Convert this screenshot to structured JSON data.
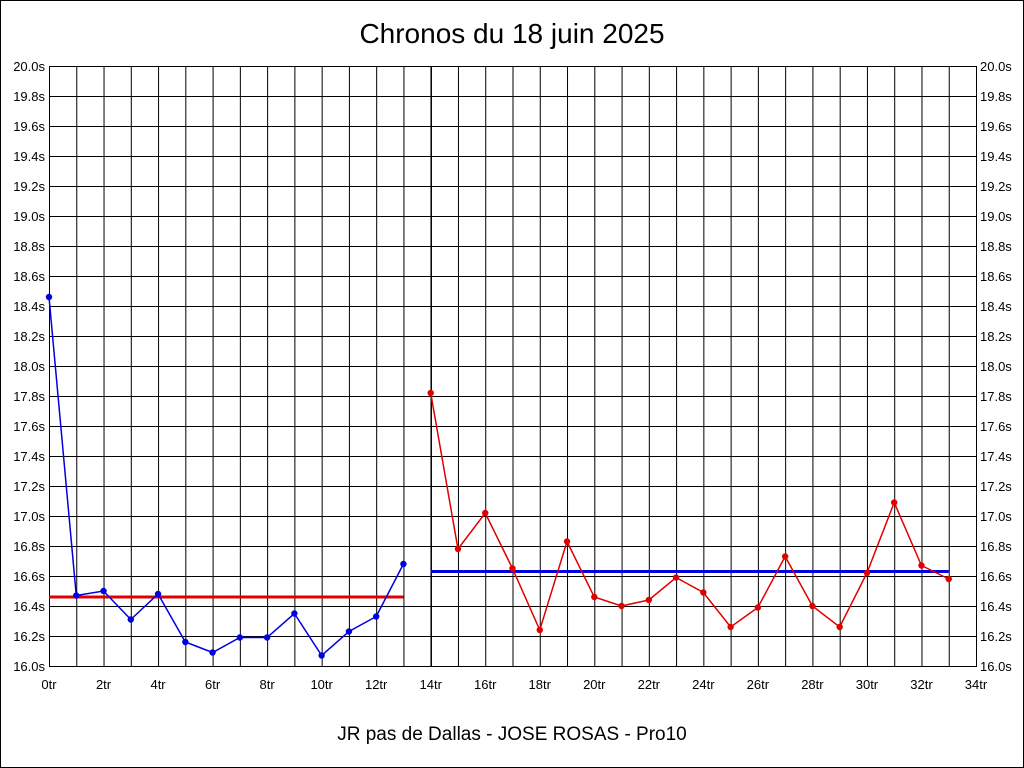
{
  "title": "Chronos du 18 juin 2025",
  "subtitle": "JR pas de Dallas - JOSE ROSAS - Pro10",
  "chart_data": {
    "type": "line",
    "title": "Chronos du 18 juin 2025",
    "xlabel": "JR pas de Dallas - JOSE ROSAS - Pro10",
    "ylabel": "",
    "xlim": [
      0,
      34
    ],
    "ylim": [
      16.0,
      20.0
    ],
    "x_ticks": [
      "0tr",
      "2tr",
      "4tr",
      "6tr",
      "8tr",
      "10tr",
      "12tr",
      "14tr",
      "16tr",
      "18tr",
      "20tr",
      "22tr",
      "24tr",
      "26tr",
      "28tr",
      "30tr",
      "32tr",
      "34tr"
    ],
    "y_ticks": [
      "20.0s",
      "19.8s",
      "19.6s",
      "19.4s",
      "19.2s",
      "19.0s",
      "18.8s",
      "18.6s",
      "18.4s",
      "18.2s",
      "18.0s",
      "17.8s",
      "17.6s",
      "17.4s",
      "17.2s",
      "17.0s",
      "16.8s",
      "16.6s",
      "16.4s",
      "16.2s",
      "16.0s"
    ],
    "grid": true,
    "series": [
      {
        "color": "#0000e0",
        "x": [
          0,
          1,
          2,
          3,
          4,
          5,
          6,
          7,
          8,
          9,
          10,
          11,
          12,
          13
        ],
        "values": [
          18.46,
          16.47,
          16.5,
          16.31,
          16.48,
          16.16,
          16.09,
          16.19,
          16.19,
          16.35,
          16.07,
          16.23,
          16.33,
          16.68
        ]
      },
      {
        "color": "#e00000",
        "x": [
          14,
          15,
          16,
          17,
          18,
          19,
          20,
          21,
          22,
          23,
          24,
          25,
          26,
          27,
          28,
          29,
          30,
          31,
          32,
          33
        ],
        "values": [
          17.82,
          16.78,
          17.02,
          16.65,
          16.24,
          16.83,
          16.46,
          16.4,
          16.44,
          16.59,
          16.49,
          16.26,
          16.39,
          16.73,
          16.4,
          16.26,
          16.62,
          17.09,
          16.67,
          16.58
        ]
      }
    ],
    "reference_lines": [
      {
        "color": "#e00000",
        "x_start": 0,
        "x_end": 13,
        "value": 16.46
      },
      {
        "color": "#0000e0",
        "x_start": 14,
        "x_end": 33,
        "value": 16.63
      }
    ],
    "vertical_separator": 14
  }
}
